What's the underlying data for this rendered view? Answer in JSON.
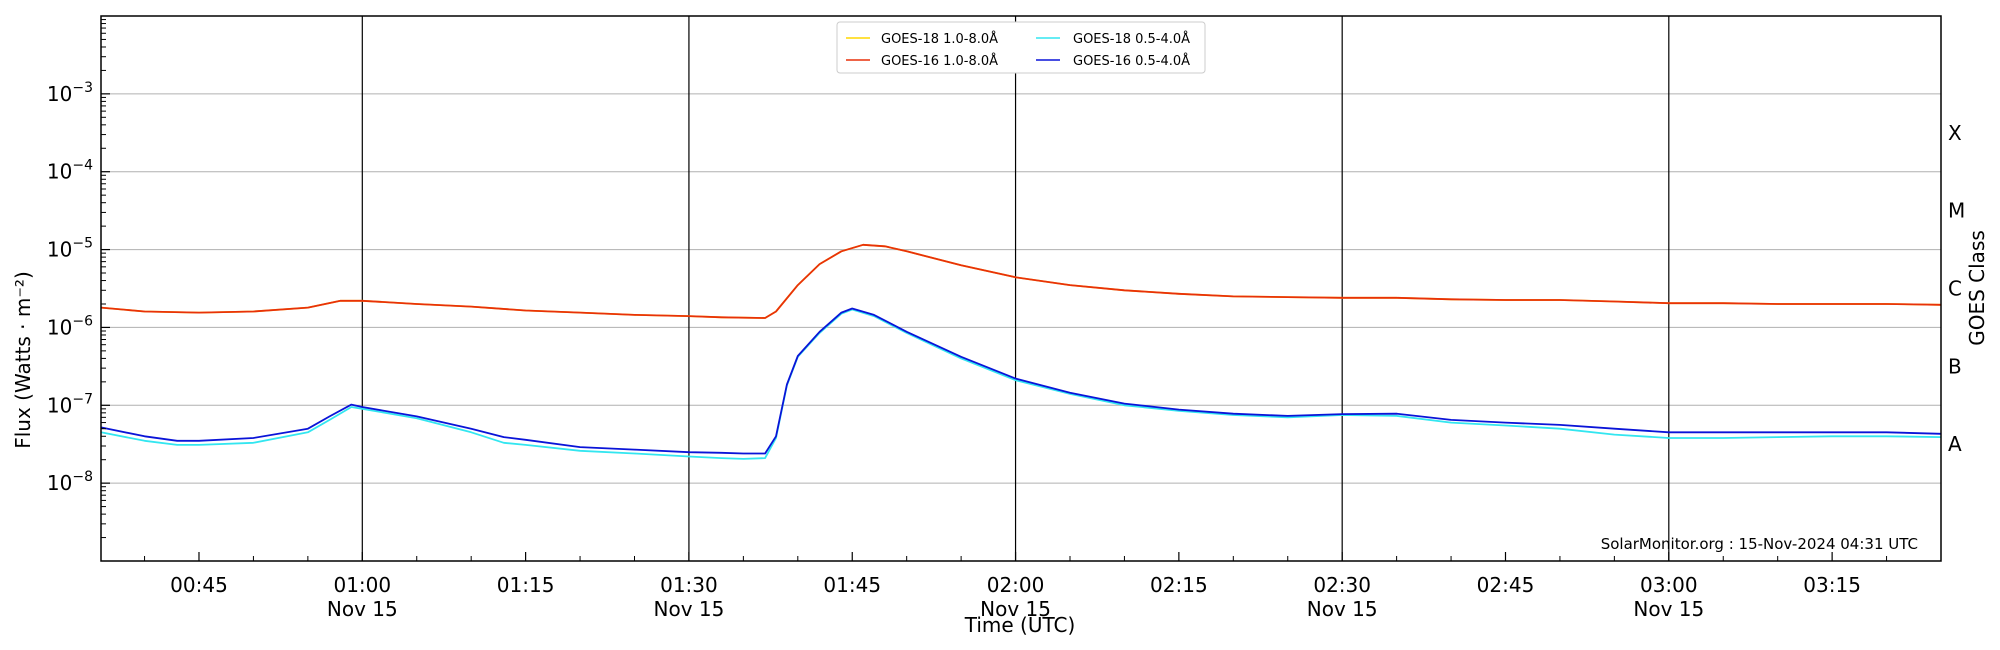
{
  "chart_data": {
    "type": "line",
    "title": "",
    "xlabel": "Time (UTC)",
    "ylabel": "Flux (Watts · m⁻²)",
    "right_ylabel": "GOES Class",
    "yscale": "log",
    "ylim": [
      1e-09,
      0.01
    ],
    "xlim": [
      "00:36",
      "03:25"
    ],
    "x_ticks": [
      {
        "t": "00:45",
        "label": "00:45",
        "date": ""
      },
      {
        "t": "01:00",
        "label": "01:00",
        "date": "Nov 15"
      },
      {
        "t": "01:15",
        "label": "01:15",
        "date": ""
      },
      {
        "t": "01:30",
        "label": "01:30",
        "date": "Nov 15"
      },
      {
        "t": "01:45",
        "label": "01:45",
        "date": ""
      },
      {
        "t": "02:00",
        "label": "02:00",
        "date": "Nov 15"
      },
      {
        "t": "02:15",
        "label": "02:15",
        "date": ""
      },
      {
        "t": "02:30",
        "label": "02:30",
        "date": "Nov 15"
      },
      {
        "t": "02:45",
        "label": "02:45",
        "date": ""
      },
      {
        "t": "03:00",
        "label": "03:00",
        "date": "Nov 15"
      },
      {
        "t": "03:15",
        "label": "03:15",
        "date": ""
      }
    ],
    "vertical_lines": [
      "01:00",
      "01:30",
      "02:00",
      "02:30",
      "03:00"
    ],
    "y_ticks": [
      {
        "mant": "10",
        "exp": "−8",
        "value": 1e-08
      },
      {
        "mant": "10",
        "exp": "−7",
        "value": 1e-07
      },
      {
        "mant": "10",
        "exp": "−6",
        "value": 1e-06
      },
      {
        "mant": "10",
        "exp": "−5",
        "value": 1e-05
      },
      {
        "mant": "10",
        "exp": "−4",
        "value": 0.0001
      },
      {
        "mant": "10",
        "exp": "−3",
        "value": 0.001
      }
    ],
    "goes_classes": [
      {
        "label": "A",
        "value": 3.16e-08
      },
      {
        "label": "B",
        "value": 3.16e-07
      },
      {
        "label": "C",
        "value": 3.16e-06
      },
      {
        "label": "M",
        "value": 3.16e-05
      },
      {
        "label": "X",
        "value": 0.000316
      }
    ],
    "grid": "horizontal",
    "legend_position": "top-center",
    "annotation": "SolarMonitor.org : 15-Nov-2024 04:31 UTC",
    "series": [
      {
        "name": "GOES-18 1.0-8.0Å",
        "color": "#ffd700",
        "x": [
          "00:36",
          "00:40",
          "00:45",
          "00:50",
          "00:55",
          "00:58",
          "01:00",
          "01:05",
          "01:10",
          "01:15",
          "01:20",
          "01:25",
          "01:30",
          "01:33",
          "01:37",
          "01:38",
          "01:40",
          "01:42",
          "01:44",
          "01:46",
          "01:48",
          "01:50",
          "01:55",
          "02:00",
          "02:05",
          "02:10",
          "02:15",
          "02:20",
          "02:25",
          "02:30",
          "02:35",
          "02:40",
          "02:45",
          "02:50",
          "02:55",
          "03:00",
          "03:05",
          "03:10",
          "03:15",
          "03:20",
          "03:25"
        ],
        "values": [
          1.8e-06,
          1.6e-06,
          1.55e-06,
          1.6e-06,
          1.8e-06,
          2.2e-06,
          2.2e-06,
          2e-06,
          1.85e-06,
          1.65e-06,
          1.55e-06,
          1.45e-06,
          1.4e-06,
          1.35e-06,
          1.32e-06,
          1.6e-06,
          3.5e-06,
          6.5e-06,
          9.5e-06,
          1.15e-05,
          1.1e-05,
          9.5e-06,
          6.3e-06,
          4.4e-06,
          3.5e-06,
          3e-06,
          2.7e-06,
          2.5e-06,
          2.45e-06,
          2.4e-06,
          2.4e-06,
          2.3e-06,
          2.25e-06,
          2.25e-06,
          2.15e-06,
          2.05e-06,
          2.05e-06,
          2e-06,
          2e-06,
          2e-06,
          1.95e-06
        ]
      },
      {
        "name": "GOES-16 1.0-8.0Å",
        "color": "#e8310a",
        "x": [
          "00:36",
          "00:40",
          "00:45",
          "00:50",
          "00:55",
          "00:58",
          "01:00",
          "01:05",
          "01:10",
          "01:15",
          "01:20",
          "01:25",
          "01:30",
          "01:33",
          "01:37",
          "01:38",
          "01:40",
          "01:42",
          "01:44",
          "01:46",
          "01:48",
          "01:50",
          "01:55",
          "02:00",
          "02:05",
          "02:10",
          "02:15",
          "02:20",
          "02:25",
          "02:30",
          "02:35",
          "02:40",
          "02:45",
          "02:50",
          "02:55",
          "03:00",
          "03:05",
          "03:10",
          "03:15",
          "03:20",
          "03:25"
        ],
        "values": [
          1.8e-06,
          1.6e-06,
          1.55e-06,
          1.6e-06,
          1.8e-06,
          2.2e-06,
          2.2e-06,
          2e-06,
          1.85e-06,
          1.65e-06,
          1.55e-06,
          1.45e-06,
          1.4e-06,
          1.35e-06,
          1.32e-06,
          1.6e-06,
          3.5e-06,
          6.5e-06,
          9.5e-06,
          1.15e-05,
          1.1e-05,
          9.5e-06,
          6.3e-06,
          4.4e-06,
          3.5e-06,
          3e-06,
          2.7e-06,
          2.5e-06,
          2.45e-06,
          2.4e-06,
          2.4e-06,
          2.3e-06,
          2.25e-06,
          2.25e-06,
          2.15e-06,
          2.05e-06,
          2.05e-06,
          2e-06,
          2e-06,
          2e-06,
          1.95e-06
        ]
      },
      {
        "name": "GOES-18 0.5-4.0Å",
        "color": "#33e6f0",
        "x": [
          "00:36",
          "00:40",
          "00:43",
          "00:45",
          "00:50",
          "00:55",
          "00:57",
          "00:59",
          "01:00",
          "01:05",
          "01:10",
          "01:13",
          "01:15",
          "01:20",
          "01:25",
          "01:30",
          "01:33",
          "01:35",
          "01:37",
          "01:38",
          "01:39",
          "01:40",
          "01:42",
          "01:44",
          "01:45",
          "01:47",
          "01:50",
          "01:55",
          "02:00",
          "02:05",
          "02:10",
          "02:15",
          "02:20",
          "02:25",
          "02:30",
          "02:35",
          "02:40",
          "02:45",
          "02:50",
          "02:55",
          "03:00",
          "03:05",
          "03:10",
          "03:15",
          "03:20",
          "03:25"
        ],
        "values": [
          4.5e-08,
          3.5e-08,
          3.1e-08,
          3.1e-08,
          3.3e-08,
          4.5e-08,
          6.5e-08,
          9.5e-08,
          9e-08,
          6.8e-08,
          4.5e-08,
          3.3e-08,
          3.1e-08,
          2.6e-08,
          2.4e-08,
          2.2e-08,
          2.1e-08,
          2.05e-08,
          2.1e-08,
          3.8e-08,
          1.8e-07,
          4.2e-07,
          8.5e-07,
          1.5e-06,
          1.7e-06,
          1.4e-06,
          8.5e-07,
          4e-07,
          2.1e-07,
          1.4e-07,
          1e-07,
          8.5e-08,
          7.5e-08,
          7e-08,
          7.5e-08,
          7.3e-08,
          6e-08,
          5.5e-08,
          5e-08,
          4.2e-08,
          3.8e-08,
          3.8e-08,
          3.9e-08,
          4e-08,
          4e-08,
          3.9e-08
        ]
      },
      {
        "name": "GOES-16 0.5-4.0Å",
        "color": "#0a14d8",
        "x": [
          "00:36",
          "00:40",
          "00:43",
          "00:45",
          "00:50",
          "00:55",
          "00:57",
          "00:59",
          "01:00",
          "01:05",
          "01:10",
          "01:13",
          "01:15",
          "01:20",
          "01:25",
          "01:30",
          "01:33",
          "01:35",
          "01:37",
          "01:38",
          "01:39",
          "01:40",
          "01:42",
          "01:44",
          "01:45",
          "01:47",
          "01:50",
          "01:55",
          "02:00",
          "02:05",
          "02:10",
          "02:15",
          "02:20",
          "02:25",
          "02:30",
          "02:35",
          "02:40",
          "02:45",
          "02:50",
          "02:55",
          "03:00",
          "03:05",
          "03:10",
          "03:15",
          "03:20",
          "03:25"
        ],
        "values": [
          5.2e-08,
          4e-08,
          3.5e-08,
          3.5e-08,
          3.8e-08,
          5e-08,
          7.2e-08,
          1.02e-07,
          9.5e-08,
          7.2e-08,
          5e-08,
          3.9e-08,
          3.6e-08,
          2.9e-08,
          2.7e-08,
          2.5e-08,
          2.45e-08,
          2.4e-08,
          2.4e-08,
          4e-08,
          1.85e-07,
          4.3e-07,
          8.8e-07,
          1.55e-06,
          1.75e-06,
          1.45e-06,
          8.8e-07,
          4.2e-07,
          2.2e-07,
          1.45e-07,
          1.05e-07,
          8.8e-08,
          7.8e-08,
          7.3e-08,
          7.7e-08,
          7.8e-08,
          6.5e-08,
          6e-08,
          5.6e-08,
          5e-08,
          4.5e-08,
          4.5e-08,
          4.5e-08,
          4.5e-08,
          4.5e-08,
          4.3e-08
        ]
      }
    ]
  }
}
